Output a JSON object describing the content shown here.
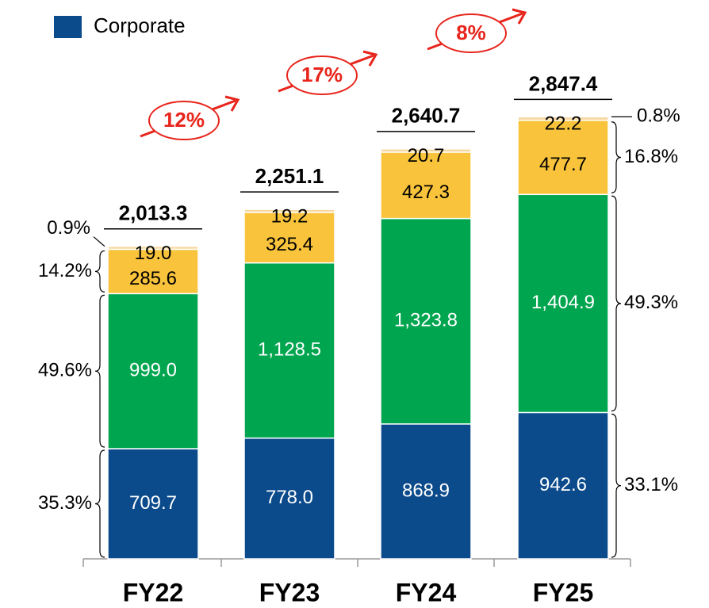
{
  "chart_data": {
    "type": "bar",
    "stacked": true,
    "categories": [
      "FY22",
      "FY23",
      "FY24",
      "FY25"
    ],
    "series": [
      {
        "name": "Corporate",
        "color": "#0b4a8b",
        "values": [
          709.7,
          778.0,
          868.9,
          942.6
        ],
        "value_labels": [
          "709.7",
          "778.0",
          "868.9",
          "942.6"
        ]
      },
      {
        "color": "#00a54f",
        "values": [
          999.0,
          1128.5,
          1323.8,
          1404.9
        ],
        "value_labels": [
          "999.0",
          "1,128.5",
          "1,323.8",
          "1,404.9"
        ]
      },
      {
        "color": "#f9c43c",
        "values": [
          285.6,
          325.4,
          427.3,
          477.7
        ],
        "value_labels": [
          "285.6",
          "325.4",
          "427.3",
          "477.7"
        ]
      },
      {
        "color": "#f7d8a0",
        "values": [
          19.0,
          19.2,
          20.7,
          22.2
        ],
        "value_labels": [
          "19.0",
          "19.2",
          "20.7",
          "22.2"
        ]
      }
    ],
    "totals": {
      "values": [
        2013.3,
        2251.1,
        2640.7,
        2847.4
      ],
      "value_labels": [
        "2,013.3",
        "2,251.1",
        "2,640.7",
        "2,847.4"
      ]
    },
    "growth": {
      "values": [
        12,
        17,
        8
      ],
      "value_labels": [
        "12%",
        "17%",
        "8%"
      ]
    },
    "shares_left": {
      "values": [
        35.3,
        49.6,
        14.2,
        0.9
      ],
      "value_labels": [
        "35.3%",
        "49.6%",
        "14.2%",
        "0.9%"
      ]
    },
    "shares_right": {
      "values": [
        33.1,
        49.3,
        16.8,
        0.8
      ],
      "value_labels": [
        "33.1%",
        "49.3%",
        "16.8%",
        "0.8%"
      ]
    },
    "ylim": [
      0,
      3600
    ]
  }
}
